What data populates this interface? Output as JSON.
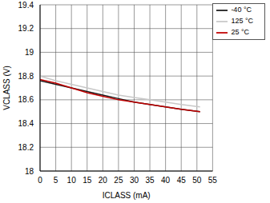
{
  "chart_data": {
    "type": "line",
    "x_label": "ICLASS (mA)",
    "y_label": "VCLASS (V)",
    "x": [
      0,
      5,
      10,
      15,
      20,
      25,
      30,
      35,
      40,
      45,
      51
    ],
    "series": [
      {
        "name": "-40 °C",
        "color": "#1a1a1a",
        "values": [
          18.76,
          18.73,
          18.7,
          18.67,
          18.64,
          18.61,
          18.58,
          18.56,
          18.54,
          18.52,
          18.5
        ]
      },
      {
        "name": "25 °C",
        "color": "#c00000",
        "values": [
          18.77,
          18.74,
          18.7,
          18.66,
          18.63,
          18.6,
          18.58,
          18.56,
          18.54,
          18.52,
          18.5
        ]
      },
      {
        "name": "125 °C",
        "color": "#c8c8c8",
        "values": [
          18.8,
          18.76,
          18.73,
          18.7,
          18.67,
          18.64,
          18.62,
          18.6,
          18.58,
          18.56,
          18.54
        ]
      }
    ],
    "xlim": [
      0,
      55
    ],
    "xticks": [
      0,
      5,
      10,
      15,
      20,
      25,
      30,
      35,
      40,
      45,
      50,
      55
    ],
    "ylim": [
      18,
      19.4
    ],
    "yticks": [
      18,
      18.2,
      18.4,
      18.6,
      18.8,
      19,
      19.2,
      19.4
    ],
    "grid": true,
    "legend": "upper right"
  }
}
